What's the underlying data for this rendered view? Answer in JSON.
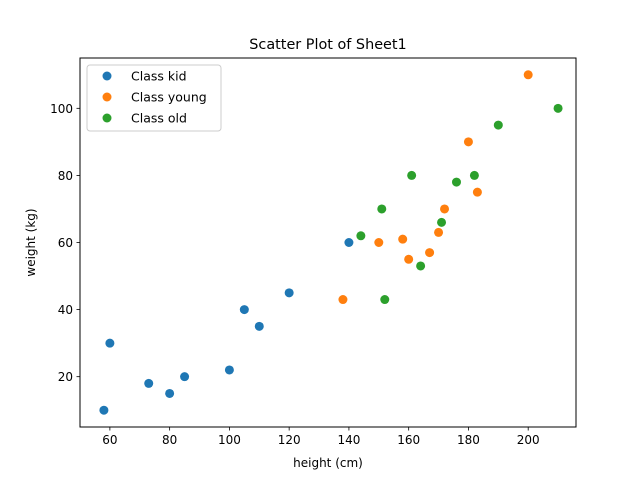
{
  "chart_data": {
    "type": "scatter",
    "title": "Scatter Plot of Sheet1",
    "xlabel": "height (cm)",
    "ylabel": "weight (kg)",
    "xlim": [
      50,
      216
    ],
    "ylim": [
      5,
      115
    ],
    "xticks": [
      60,
      80,
      100,
      120,
      140,
      160,
      180,
      200
    ],
    "yticks": [
      20,
      40,
      60,
      80,
      100
    ],
    "grid": false,
    "legend_position": "top-left",
    "series": [
      {
        "name": "Class kid",
        "color": "#1f77b4",
        "points": [
          [
            58,
            10
          ],
          [
            60,
            30
          ],
          [
            73,
            18
          ],
          [
            80,
            15
          ],
          [
            85,
            20
          ],
          [
            100,
            22
          ],
          [
            105,
            40
          ],
          [
            110,
            35
          ],
          [
            120,
            45
          ],
          [
            140,
            60
          ]
        ]
      },
      {
        "name": "Class young",
        "color": "#ff7f0e",
        "points": [
          [
            138,
            43
          ],
          [
            150,
            60
          ],
          [
            158,
            61
          ],
          [
            160,
            55
          ],
          [
            167,
            57
          ],
          [
            170,
            63
          ],
          [
            172,
            70
          ],
          [
            180,
            90
          ],
          [
            183,
            75
          ],
          [
            200,
            110
          ]
        ]
      },
      {
        "name": "Class old",
        "color": "#2ca02c",
        "points": [
          [
            144,
            62
          ],
          [
            151,
            70
          ],
          [
            152,
            43
          ],
          [
            161,
            80
          ],
          [
            164,
            53
          ],
          [
            171,
            66
          ],
          [
            176,
            78
          ],
          [
            182,
            80
          ],
          [
            190,
            95
          ],
          [
            210,
            100
          ]
        ]
      }
    ]
  }
}
